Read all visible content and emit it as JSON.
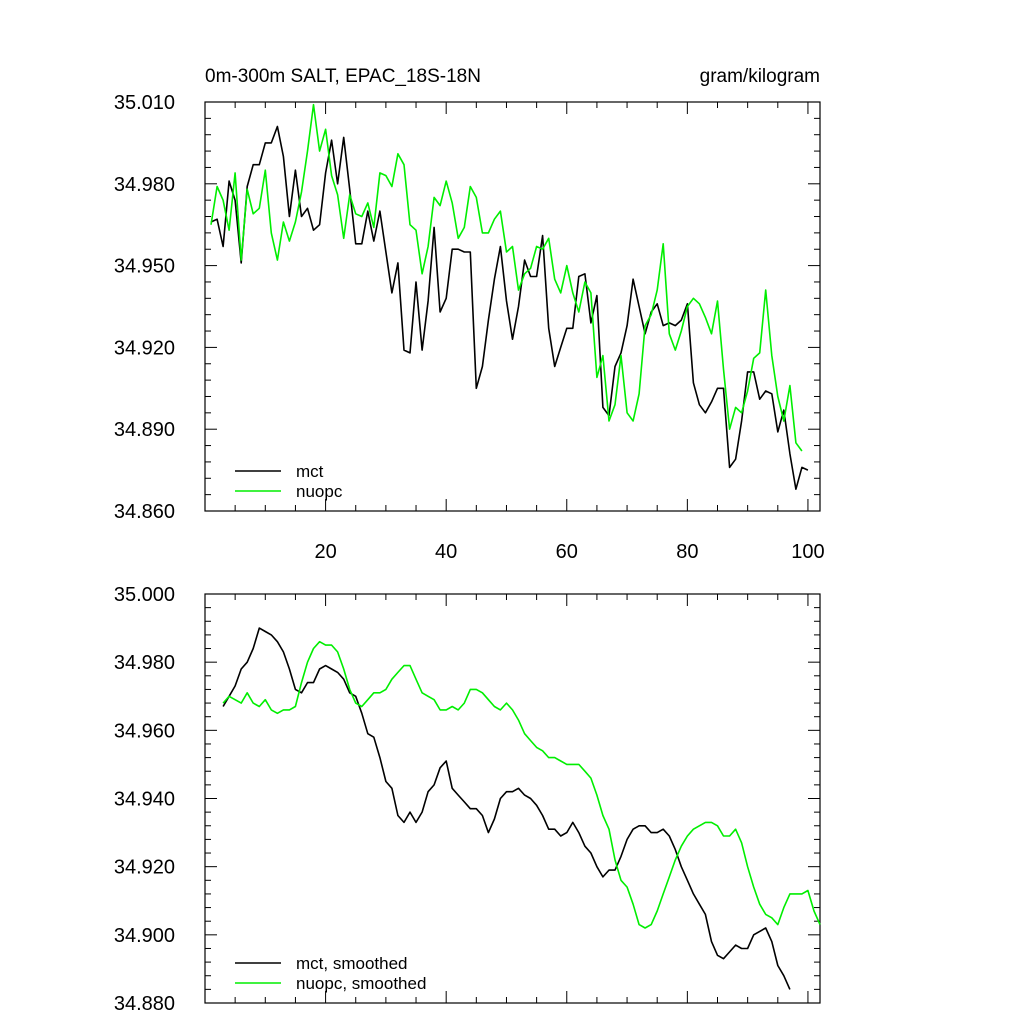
{
  "colors": {
    "mct": "#000000",
    "nuopc": "#00ee00"
  },
  "chart_data": [
    {
      "type": "line",
      "title_left": "0m-300m SALT, EPAC_18S-18N",
      "title_right": "gram/kilogram",
      "xlabel": "",
      "ylabel": "",
      "xlim": [
        0,
        102
      ],
      "ylim": [
        34.86,
        35.01
      ],
      "x_ticks": [
        20,
        40,
        60,
        80,
        100
      ],
      "x_tick_labels": [
        "20",
        "40",
        "60",
        "80",
        "100"
      ],
      "y_ticks": [
        34.86,
        34.89,
        34.92,
        34.95,
        34.98,
        35.01
      ],
      "y_tick_labels": [
        "34.860",
        "34.890",
        "34.920",
        "34.950",
        "34.980",
        "35.010"
      ],
      "legend_position": "bottom-left",
      "x_start": 1,
      "series": [
        {
          "name": "mct",
          "color": "#000000",
          "values": [
            34.966,
            34.967,
            34.957,
            34.981,
            34.974,
            34.951,
            34.979,
            34.987,
            34.987,
            34.995,
            34.995,
            35.001,
            34.99,
            34.968,
            34.985,
            34.968,
            34.971,
            34.963,
            34.965,
            34.984,
            34.996,
            34.98,
            34.997,
            34.978,
            34.958,
            34.958,
            34.97,
            34.959,
            34.97,
            34.955,
            34.94,
            34.951,
            34.919,
            34.918,
            34.944,
            34.919,
            34.937,
            34.964,
            34.933,
            34.938,
            34.956,
            34.956,
            34.955,
            34.955,
            34.905,
            34.913,
            34.93,
            34.945,
            34.957,
            34.937,
            34.923,
            34.935,
            34.952,
            34.946,
            34.946,
            34.961,
            34.927,
            34.913,
            34.92,
            34.927,
            34.927,
            34.946,
            34.947,
            34.929,
            34.939,
            34.898,
            34.895,
            34.913,
            34.918,
            34.928,
            34.945,
            34.935,
            34.925,
            34.933,
            34.936,
            34.928,
            34.929,
            34.928,
            34.93,
            34.936,
            34.907,
            34.899,
            34.896,
            34.9,
            34.905,
            34.905,
            34.876,
            34.879,
            34.893,
            34.911,
            34.911,
            34.901,
            34.904,
            34.903,
            34.889,
            34.897,
            34.881,
            34.868,
            34.876,
            34.875
          ]
        },
        {
          "name": "nuopc",
          "color": "#00ee00",
          "values": [
            34.965,
            34.979,
            34.974,
            34.963,
            34.984,
            34.952,
            34.978,
            34.969,
            34.971,
            34.985,
            34.962,
            34.952,
            34.966,
            34.959,
            34.966,
            34.977,
            34.992,
            35.009,
            34.992,
            35.0,
            34.983,
            34.976,
            34.96,
            34.976,
            34.969,
            34.968,
            34.973,
            34.964,
            34.984,
            34.983,
            34.979,
            34.991,
            34.987,
            34.965,
            34.963,
            34.947,
            34.957,
            34.975,
            34.972,
            34.981,
            34.973,
            34.96,
            34.964,
            34.979,
            34.975,
            34.962,
            34.962,
            34.967,
            34.97,
            34.955,
            34.957,
            34.941,
            34.947,
            34.949,
            34.957,
            34.956,
            34.96,
            34.945,
            34.94,
            34.95,
            34.94,
            34.933,
            34.944,
            34.94,
            34.909,
            34.917,
            34.893,
            34.899,
            34.917,
            34.896,
            34.893,
            34.903,
            34.928,
            34.932,
            34.941,
            34.958,
            34.925,
            34.919,
            34.926,
            34.935,
            34.938,
            34.936,
            34.931,
            34.925,
            34.937,
            34.912,
            34.89,
            34.898,
            34.896,
            34.904,
            34.916,
            34.918,
            34.941,
            34.917,
            34.902,
            34.893,
            34.906,
            34.885,
            34.882
          ]
        }
      ]
    },
    {
      "type": "line",
      "title_left": "",
      "title_right": "",
      "xlabel": "",
      "ylabel": "",
      "xlim": [
        0,
        102
      ],
      "ylim": [
        34.88,
        35.0
      ],
      "x_ticks": [
        20,
        40,
        60,
        80,
        100
      ],
      "x_tick_labels": [],
      "y_ticks": [
        34.88,
        34.9,
        34.92,
        34.94,
        34.96,
        34.98,
        35.0
      ],
      "y_tick_labels": [
        "34.880",
        "34.900",
        "34.920",
        "34.940",
        "34.960",
        "34.980",
        "35.000"
      ],
      "legend_position": "bottom-left",
      "x_start": 3,
      "series": [
        {
          "name": "mct, smoothed",
          "color": "#000000",
          "values": [
            34.967,
            34.97,
            34.973,
            34.978,
            34.98,
            34.984,
            34.99,
            34.989,
            34.988,
            34.986,
            34.983,
            34.978,
            34.972,
            34.971,
            34.974,
            34.974,
            34.978,
            34.979,
            34.978,
            34.977,
            34.975,
            34.971,
            34.97,
            34.965,
            34.959,
            34.958,
            34.952,
            34.945,
            34.943,
            34.935,
            34.933,
            34.936,
            34.933,
            34.936,
            34.942,
            34.944,
            34.949,
            34.951,
            34.943,
            34.941,
            34.939,
            34.937,
            34.937,
            34.935,
            34.93,
            34.934,
            34.94,
            34.942,
            34.942,
            34.943,
            34.941,
            34.94,
            34.938,
            34.935,
            34.931,
            34.931,
            34.929,
            34.93,
            34.933,
            34.93,
            34.926,
            34.924,
            34.92,
            34.917,
            34.919,
            34.919,
            34.923,
            34.928,
            34.931,
            34.932,
            34.932,
            34.93,
            34.93,
            34.931,
            34.929,
            34.925,
            34.92,
            34.916,
            34.912,
            34.909,
            34.906,
            34.898,
            34.894,
            34.893,
            34.895,
            34.897,
            34.896,
            34.896,
            34.9,
            34.901,
            34.902,
            34.898,
            34.891,
            34.888,
            34.884
          ]
        },
        {
          "name": "nuopc, smoothed",
          "color": "#00ee00",
          "values": [
            34.968,
            34.97,
            34.969,
            34.968,
            34.971,
            34.968,
            34.967,
            34.969,
            34.966,
            34.965,
            34.966,
            34.966,
            34.967,
            34.974,
            34.98,
            34.984,
            34.986,
            34.985,
            34.985,
            34.983,
            34.978,
            34.972,
            34.968,
            34.967,
            34.969,
            34.971,
            34.971,
            34.972,
            34.975,
            34.977,
            34.979,
            34.979,
            34.975,
            34.971,
            34.97,
            34.969,
            34.966,
            34.966,
            34.967,
            34.966,
            34.968,
            34.972,
            34.972,
            34.971,
            34.969,
            34.967,
            34.966,
            34.968,
            34.966,
            34.963,
            34.959,
            34.957,
            34.955,
            34.954,
            34.952,
            34.952,
            34.951,
            34.95,
            34.95,
            34.95,
            34.948,
            34.946,
            34.941,
            34.935,
            34.931,
            34.922,
            34.916,
            34.914,
            34.909,
            34.903,
            34.902,
            34.903,
            34.907,
            34.912,
            34.917,
            34.922,
            34.926,
            34.929,
            34.931,
            34.932,
            34.933,
            34.933,
            34.932,
            34.929,
            34.929,
            34.931,
            34.927,
            34.92,
            34.914,
            34.909,
            34.906,
            34.905,
            34.903,
            34.908,
            34.912,
            34.912,
            34.912,
            34.913,
            34.907,
            34.903
          ]
        }
      ]
    }
  ]
}
